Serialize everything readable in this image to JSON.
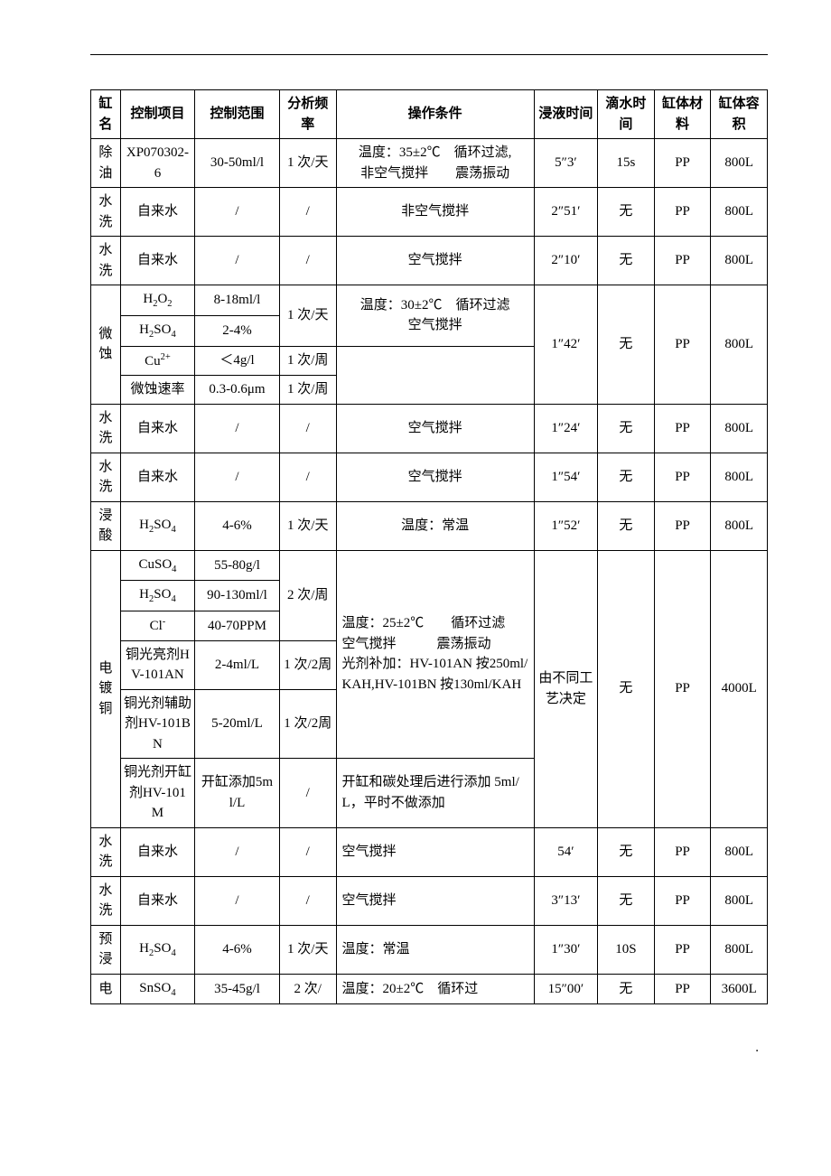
{
  "columns": {
    "c1": "缸名",
    "c2": "控制项目",
    "c3": "控制范围",
    "c4": "分析频率",
    "c5": "操作条件",
    "c6": "浸液时间",
    "c7": "滴水时间",
    "c8": "缸体材料",
    "c9": "缸体容积"
  },
  "widths": {
    "c1": "4.2%",
    "c2": "10.5%",
    "c3": "12%",
    "c4": "8%",
    "c5": "28%",
    "c6": "9%",
    "c7": "8%",
    "c8": "8%",
    "c9": "8%"
  },
  "r": {
    "chuyou": {
      "name": "除油",
      "item": "XP070302-6",
      "range": "30-50ml/l",
      "freq": "1 次/天",
      "cond": "温度：35±2℃ 循环过滤,\n非空气搅拌  震荡振动",
      "soak": "5″3′",
      "drip": "15s",
      "mat": "PP",
      "vol": "800L"
    },
    "wash1": {
      "name": "水洗",
      "item": "自来水",
      "range": "/",
      "freq": "/",
      "cond": "非空气搅拌",
      "soak": "2″51′",
      "drip": "无",
      "mat": "PP",
      "vol": "800L"
    },
    "wash2": {
      "name": "水洗",
      "item": "自来水",
      "range": "/",
      "freq": "/",
      "cond": "空气搅拌",
      "soak": "2″10′",
      "drip": "无",
      "mat": "PP",
      "vol": "800L"
    },
    "weishi": {
      "name": "微蚀",
      "row1": {
        "item_html": "H<sub>2</sub>O<sub>2</sub>",
        "range": "8-18ml/l",
        "freq": "1 次/天"
      },
      "row2": {
        "item_html": "H<sub>2</sub>SO<sub>4</sub>",
        "range": "2-4%"
      },
      "row3": {
        "item_html": "Cu<sup>2+</sup>",
        "range": "＜4g/l",
        "freq": "1 次/周"
      },
      "row4": {
        "item": "微蚀速率",
        "range": "0.3-0.6μm",
        "freq": "1 次/周"
      },
      "cond": "温度：30±2℃ 循环过滤\n空气搅拌",
      "soak": "1″42′",
      "drip": "无",
      "mat": "PP",
      "vol": "800L"
    },
    "wash3": {
      "name": "水洗",
      "item": "自来水",
      "range": "/",
      "freq": "/",
      "cond": "空气搅拌",
      "soak": "1″24′",
      "drip": "无",
      "mat": "PP",
      "vol": "800L"
    },
    "wash4": {
      "name": "水洗",
      "item": "自来水",
      "range": "/",
      "freq": "/",
      "cond": "空气搅拌",
      "soak": "1″54′",
      "drip": "无",
      "mat": "PP",
      "vol": "800L"
    },
    "jinsuan": {
      "name": "浸酸",
      "item_html": "H<sub>2</sub>SO<sub>4</sub>",
      "range": "4-6%",
      "freq": "1 次/天",
      "cond": "温度：常温",
      "soak": "1″52′",
      "drip": "无",
      "mat": "PP",
      "vol": "800L"
    },
    "diandu": {
      "name": "电镀铜",
      "r1": {
        "item_html": "CuSO<sub>4</sub>",
        "range": "55-80g/l",
        "freq": "2 次/周"
      },
      "r2": {
        "item_html": "H<sub>2</sub>SO<sub>4</sub>",
        "range": "90-130ml/l"
      },
      "r3": {
        "item_html": "Cl<sup>-</sup>",
        "range": "40-70PPM"
      },
      "r4": {
        "item": "铜光亮剂HV-101AN",
        "range": "2-4ml/L",
        "freq": "1 次/2周"
      },
      "r5": {
        "item": "铜光剂辅助剂HV-101BN",
        "range": "5-20ml/L",
        "freq": "1 次/2周"
      },
      "r6": {
        "item": "铜光剂开缸剂HV-101M",
        "range": "开缸添加5ml/L",
        "freq": "/",
        "cond": "开缸和碳处理后进行添加 5ml/L，平时不做添加"
      },
      "cond": "温度：25±2℃  循环过滤\n空气搅拌   震荡振动\n光剂补加：HV-101AN 按250ml/KAH,HV-101BN 按130ml/KAH",
      "soak": "由不同工艺决定",
      "drip": "无",
      "mat": "PP",
      "vol": "4000L"
    },
    "wash5": {
      "name": "水洗",
      "item": "自来水",
      "range": "/",
      "freq": "/",
      "cond": "空气搅拌",
      "soak": "54′",
      "drip": "无",
      "mat": "PP",
      "vol": "800L"
    },
    "wash6": {
      "name": "水洗",
      "item": "自来水",
      "range": "/",
      "freq": "/",
      "cond": "空气搅拌",
      "soak": "3″13′",
      "drip": "无",
      "mat": "PP",
      "vol": "800L"
    },
    "yujin": {
      "name": "预浸",
      "item_html": "H<sub>2</sub>SO<sub>4</sub>",
      "range": "4-6%",
      "freq": "1 次/天",
      "cond": "温度：常温",
      "soak": "1″30′",
      "drip": "10S",
      "mat": "PP",
      "vol": "800L"
    },
    "dian": {
      "name": "电",
      "item_html": "SnSO<sub>4</sub>",
      "range": "35-45g/l",
      "freq": "2 次/",
      "cond": "温度：20±2℃ 循环过",
      "soak": "15″00′",
      "drip": "无",
      "mat": "PP",
      "vol": "3600L"
    }
  }
}
